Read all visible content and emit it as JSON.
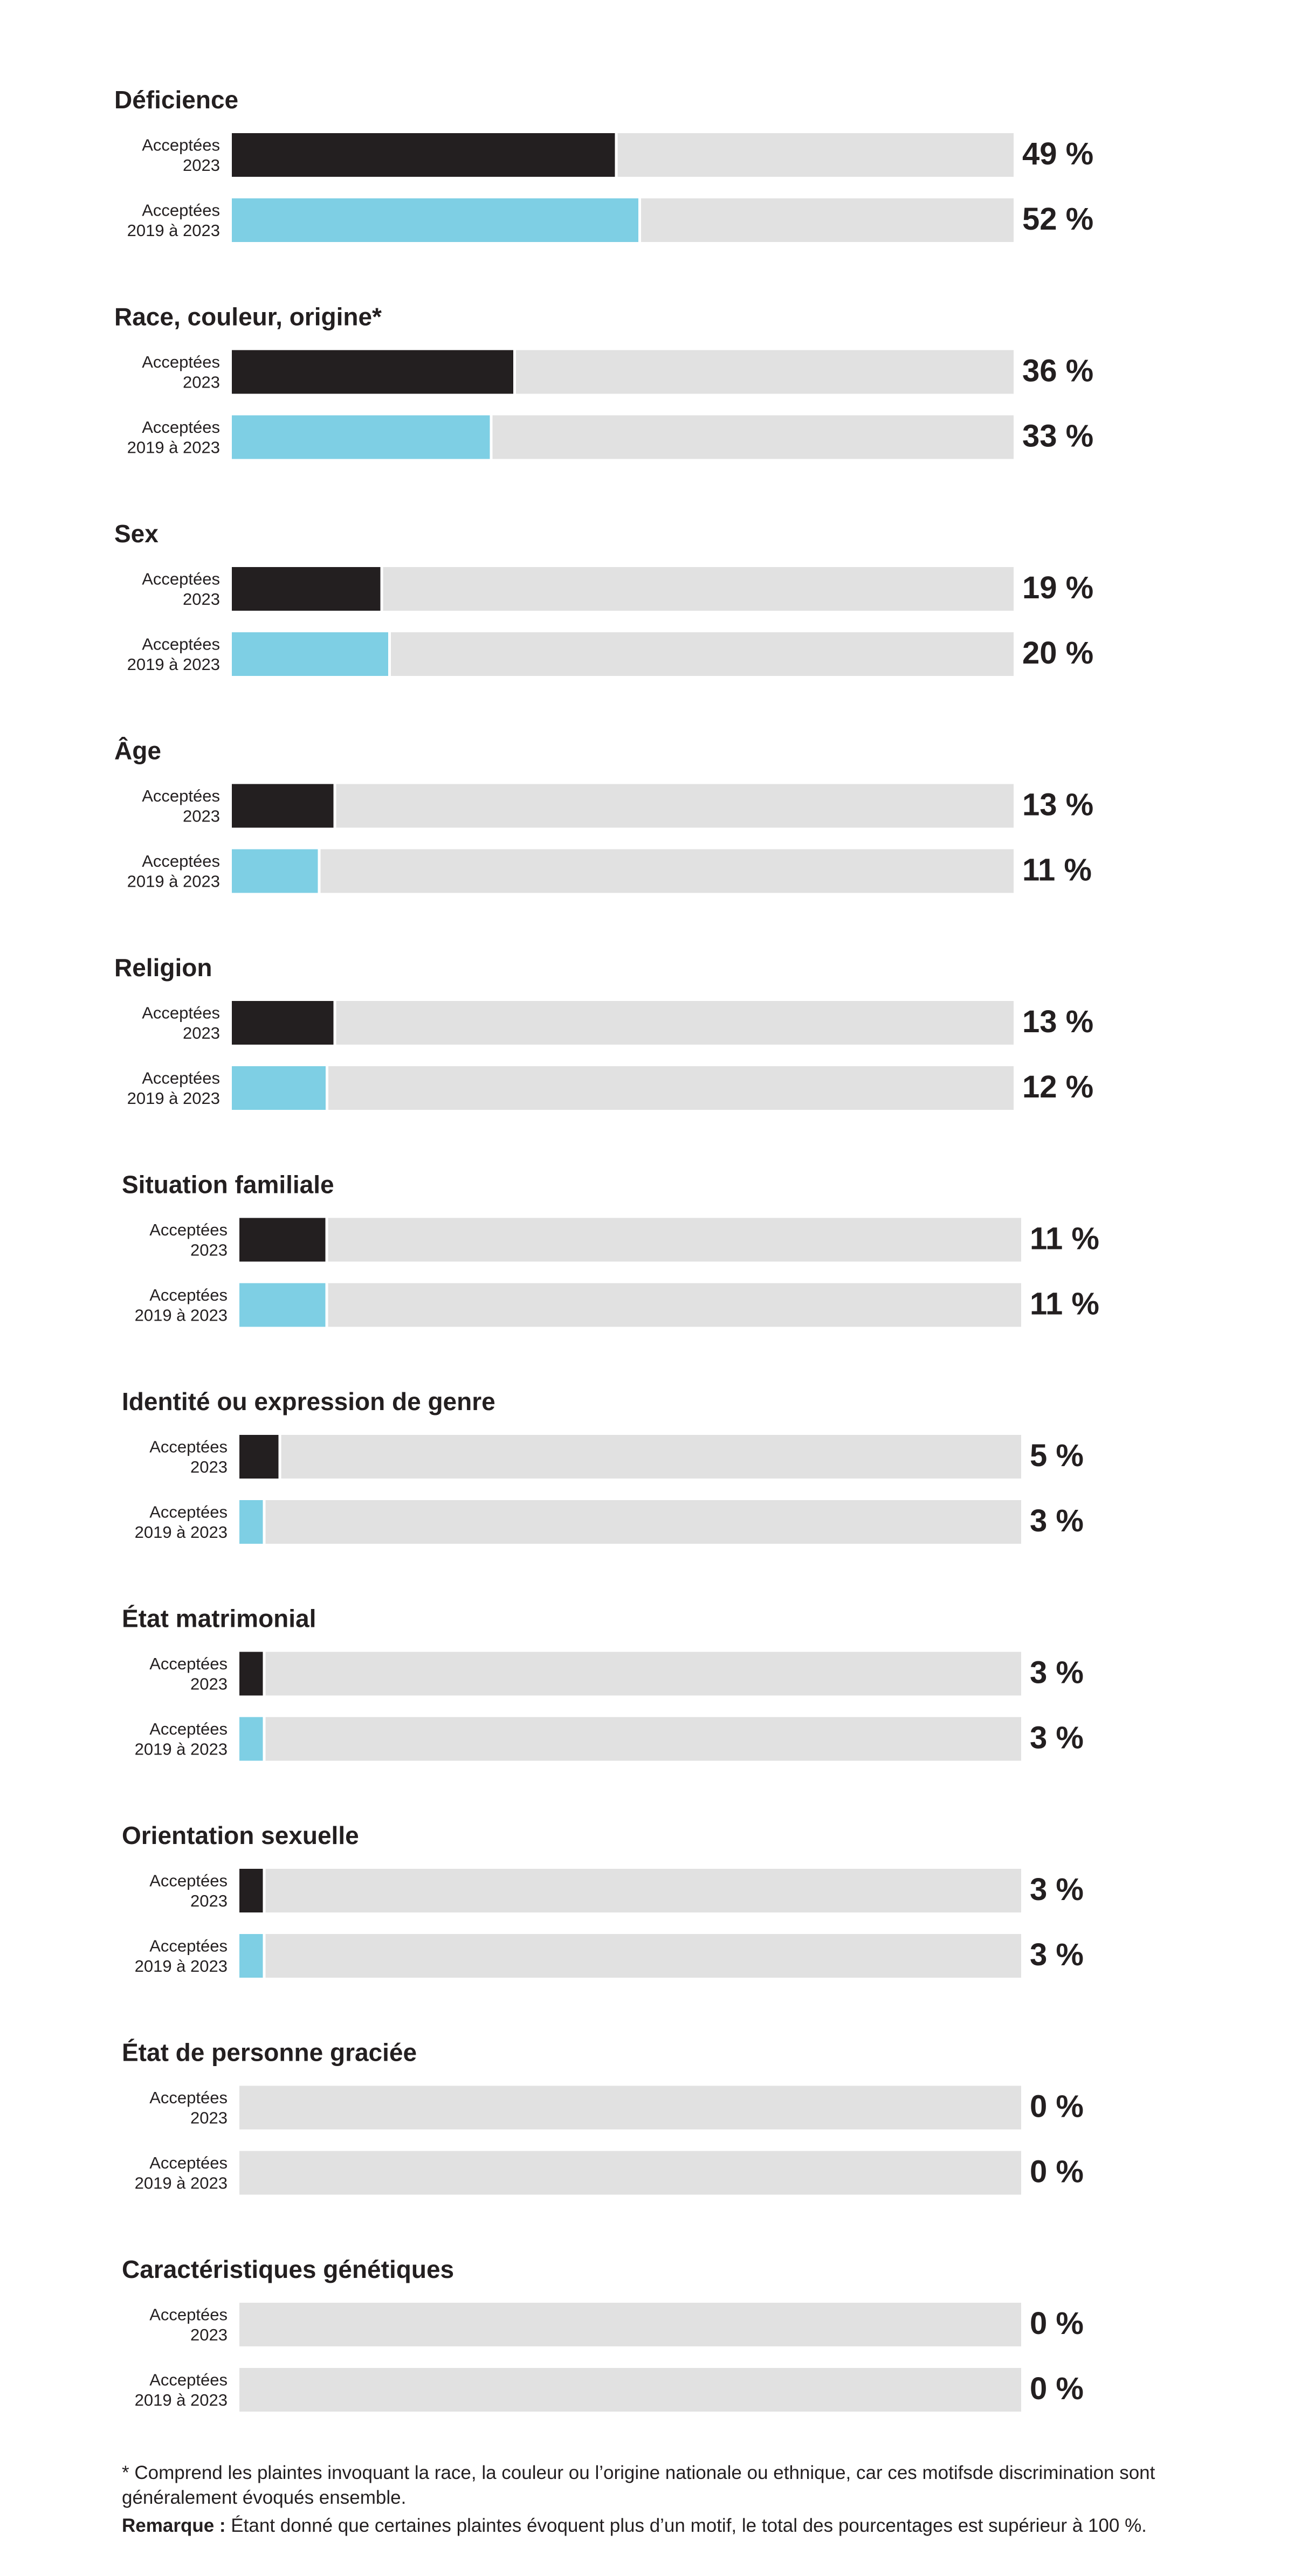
{
  "chart_data": {
    "type": "bar",
    "orientation": "horizontal",
    "xlim": [
      0,
      100
    ],
    "unit": "%",
    "series": [
      {
        "key": "2023",
        "label": "Acceptées\n2023",
        "color": "#231f20"
      },
      {
        "key": "2019_2023",
        "label": "Acceptées\n2019 à 2023",
        "color": "#7ecfe4"
      }
    ],
    "track_color": "#e1e1e1",
    "groups": [
      {
        "name": "Déficience",
        "values": [
          49,
          52
        ],
        "labels": [
          "49 %",
          "52 %"
        ]
      },
      {
        "name": "Race, couleur, origine*",
        "values": [
          36,
          33
        ],
        "labels": [
          "36 %",
          "33 %"
        ]
      },
      {
        "name": "Sex",
        "values": [
          19,
          20
        ],
        "labels": [
          "19 %",
          "20 %"
        ]
      },
      {
        "name": "Âge",
        "values": [
          13,
          11
        ],
        "labels": [
          "13 %",
          "11 %"
        ]
      },
      {
        "name": "Religion",
        "values": [
          13,
          12
        ],
        "labels": [
          "13 %",
          "12 %"
        ]
      },
      {
        "name": "Situation familiale",
        "values": [
          11,
          11
        ],
        "labels": [
          "11 %",
          "11 %"
        ]
      },
      {
        "name": "Identité ou expression de genre",
        "values": [
          5,
          3
        ],
        "labels": [
          "5 %",
          "3 %"
        ]
      },
      {
        "name": "État matrimonial",
        "values": [
          3,
          3
        ],
        "labels": [
          "3 %",
          "3 %"
        ]
      },
      {
        "name": "Orientation sexuelle",
        "values": [
          3,
          3
        ],
        "labels": [
          "3 %",
          "3 %"
        ]
      },
      {
        "name": "État de personne graciée",
        "values": [
          0,
          0
        ],
        "labels": [
          "0 %",
          "0 %"
        ]
      },
      {
        "name": "Caractéristiques génétiques",
        "values": [
          0,
          0
        ],
        "labels": [
          "0 %",
          "0 %"
        ]
      }
    ]
  },
  "footnote": {
    "asterisk_note": "* Comprend les plaintes invoquant la race, la couleur ou l’origine nationale ou ethnique, car ces motifsde discrimination sont généralement évoqués ensemble.",
    "remark_label": "Remarque :",
    "remark_text": "Étant donné que certaines plaintes évoquent plus d’un motif, le total des pourcentages est supérieur à 100 %."
  }
}
